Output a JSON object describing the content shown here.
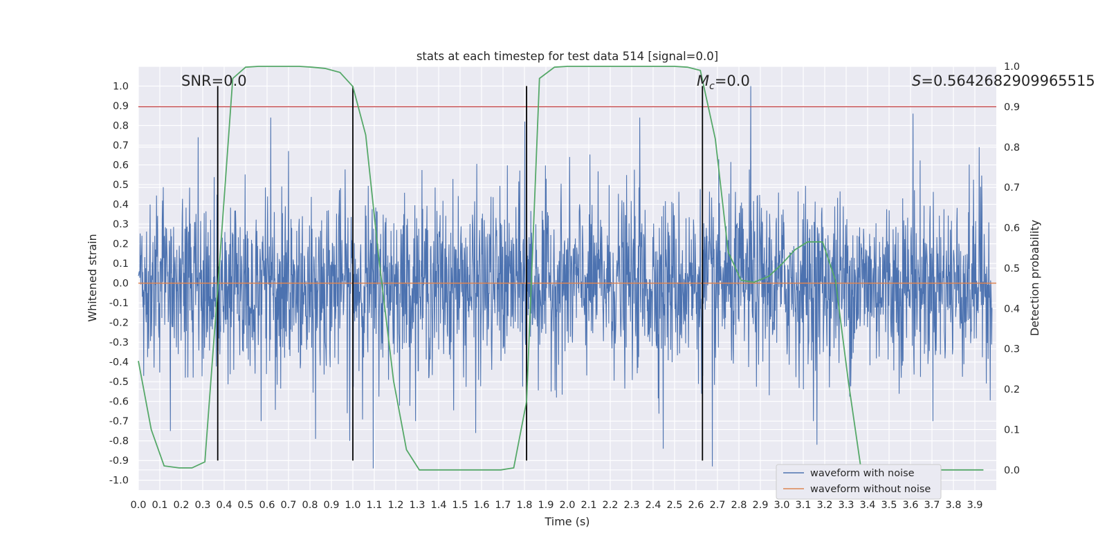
{
  "chart_data": {
    "type": "line",
    "title": "stats at each timestep for test data 514 [signal=0.0]",
    "xlabel": "Time (s)",
    "ylabel_left": "Whitened strain",
    "ylabel_right": "Detection probability",
    "xlim": [
      0.0,
      4.0
    ],
    "ylim_left": [
      -1.05,
      1.1
    ],
    "ylim_right": [
      -0.05,
      1.0
    ],
    "x_ticks": [
      "0.0",
      "0.1",
      "0.2",
      "0.3",
      "0.4",
      "0.5",
      "0.6",
      "0.7",
      "0.8",
      "0.9",
      "1.0",
      "1.1",
      "1.2",
      "1.3",
      "1.4",
      "1.5",
      "1.6",
      "1.7",
      "1.8",
      "1.9",
      "2.0",
      "2.1",
      "2.2",
      "2.3",
      "2.4",
      "2.5",
      "2.6",
      "2.7",
      "2.8",
      "2.9",
      "3.0",
      "3.1",
      "3.2",
      "3.3",
      "3.4",
      "3.5",
      "3.6",
      "3.7",
      "3.8",
      "3.9"
    ],
    "y_ticks_left": [
      "1.0",
      "0.9",
      "0.8",
      "0.7",
      "0.6",
      "0.5",
      "0.4",
      "0.3",
      "0.2",
      "0.1",
      "0.0",
      "-0.1",
      "-0.2",
      "-0.3",
      "-0.4",
      "-0.5",
      "-0.6",
      "-0.7",
      "-0.8",
      "-0.9",
      "-1.0"
    ],
    "y_ticks_right": [
      "1.0",
      "0.9",
      "0.8",
      "0.7",
      "0.6",
      "0.5",
      "0.4",
      "0.3",
      "0.2",
      "0.1",
      "0.0"
    ],
    "annotations": {
      "snr": "SNR=0.0",
      "mc_symbol": "M",
      "mc_subscript": "c",
      "mc_value": "=0.0",
      "s_symbol": "S",
      "s_value": "=0.5642682909965515"
    },
    "threshold_right": 0.9,
    "vertical_lines_x": [
      0.37,
      1.0,
      1.81,
      2.63
    ],
    "vertical_lines_range": [
      -0.9,
      1.0
    ],
    "series": [
      {
        "name": "waveform with noise",
        "color": "#4c72b0",
        "axis": "left",
        "noise_sigma": 0.22,
        "peaks": [
          {
            "x": 0.62,
            "y": 0.84
          },
          {
            "x": 1.81,
            "y": 0.82
          },
          {
            "x": 2.35,
            "y": 0.84
          },
          {
            "x": 2.87,
            "y": 1.0
          },
          {
            "x": 3.63,
            "y": 0.86
          },
          {
            "x": 0.28,
            "y": 0.74
          },
          {
            "x": 0.15,
            "y": -0.75
          },
          {
            "x": 1.1,
            "y": -0.94
          },
          {
            "x": 2.46,
            "y": -0.84
          },
          {
            "x": 2.69,
            "y": -0.93
          },
          {
            "x": 3.18,
            "y": -0.82
          },
          {
            "x": 0.83,
            "y": -0.79
          },
          {
            "x": 0.99,
            "y": -0.8
          },
          {
            "x": 1.58,
            "y": -0.76
          },
          {
            "x": 3.94,
            "y": 0.69
          }
        ]
      },
      {
        "name": "waveform without noise",
        "color": "#dd8452",
        "axis": "left",
        "x": [
          0.0,
          4.0
        ],
        "y": [
          0.0,
          0.0
        ]
      },
      {
        "name": "detection probability",
        "color": "#55a868",
        "axis": "right",
        "x": [
          0.0,
          0.06,
          0.12,
          0.19,
          0.25,
          0.31,
          0.37,
          0.44,
          0.5,
          0.56,
          0.62,
          0.69,
          0.75,
          0.81,
          0.87,
          0.94,
          1.0,
          1.06,
          1.12,
          1.19,
          1.25,
          1.31,
          1.37,
          1.44,
          1.5,
          1.56,
          1.62,
          1.69,
          1.75,
          1.81,
          1.87,
          1.94,
          2.0,
          2.06,
          2.12,
          2.19,
          2.25,
          2.31,
          2.37,
          2.44,
          2.5,
          2.56,
          2.62,
          2.69,
          2.75,
          2.81,
          2.87,
          2.94,
          3.0,
          3.06,
          3.12,
          3.19,
          3.25,
          3.31,
          3.37,
          3.44,
          3.5,
          3.56,
          3.62,
          3.69,
          3.75,
          3.81,
          3.87,
          3.94
        ],
        "y": [
          0.27,
          0.1,
          0.01,
          0.005,
          0.005,
          0.02,
          0.45,
          0.97,
          0.998,
          1.0,
          1.0,
          1.0,
          1.0,
          0.998,
          0.995,
          0.985,
          0.95,
          0.83,
          0.53,
          0.22,
          0.05,
          0.0,
          0.0,
          0.0,
          0.0,
          0.0,
          0.0,
          0.0,
          0.005,
          0.17,
          0.97,
          0.998,
          1.0,
          1.0,
          1.0,
          1.0,
          1.0,
          1.0,
          1.0,
          1.0,
          1.0,
          0.998,
          0.99,
          0.82,
          0.54,
          0.47,
          0.465,
          0.48,
          0.51,
          0.545,
          0.565,
          0.565,
          0.47,
          0.22,
          0.0,
          0.0,
          0.0,
          0.0,
          0.0,
          0.0,
          0.0,
          0.0,
          0.0,
          0.0
        ]
      }
    ],
    "legend": {
      "location": "lower-right",
      "entries": [
        {
          "label": "waveform with noise",
          "color": "#4c72b0"
        },
        {
          "label": "waveform without noise",
          "color": "#dd8452"
        }
      ]
    },
    "style": {
      "plot_background": "#eaeaf2",
      "grid_color": "#ffffff",
      "threshold_color": "#c44e52",
      "vline_color": "#000000"
    }
  }
}
